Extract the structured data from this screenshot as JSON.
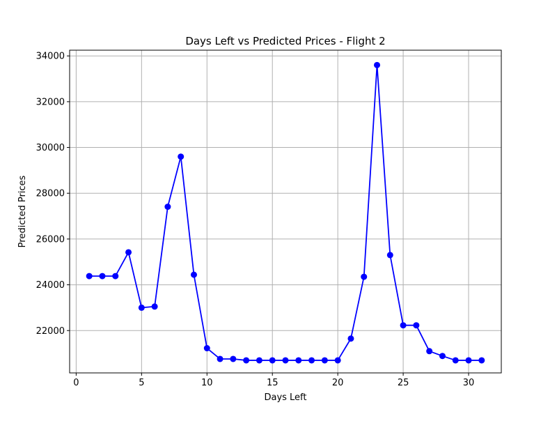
{
  "chart_data": {
    "type": "line",
    "title": "Days Left vs Predicted Prices - Flight 2",
    "xlabel": "Days Left",
    "ylabel": "Predicted Prices",
    "xlim": [
      -0.5,
      32.5
    ],
    "ylim": [
      20150,
      34250
    ],
    "xticks": [
      0,
      5,
      10,
      15,
      20,
      25,
      30
    ],
    "yticks": [
      22000,
      24000,
      26000,
      28000,
      30000,
      32000,
      34000
    ],
    "grid": true,
    "series": [
      {
        "color": "#0000ff",
        "marker": "circle",
        "x": [
          1,
          2,
          3,
          4,
          5,
          6,
          7,
          8,
          9,
          10,
          11,
          12,
          13,
          14,
          15,
          16,
          17,
          18,
          19,
          20,
          21,
          22,
          23,
          24,
          25,
          26,
          27,
          28,
          29,
          30,
          31
        ],
        "y": [
          24380,
          24380,
          24380,
          25420,
          23000,
          23050,
          27410,
          29600,
          24440,
          21230,
          20760,
          20760,
          20700,
          20700,
          20700,
          20700,
          20700,
          20700,
          20700,
          20700,
          21650,
          24350,
          33600,
          25300,
          22230,
          22230,
          21100,
          20890,
          20700,
          20700,
          20700
        ]
      }
    ]
  }
}
